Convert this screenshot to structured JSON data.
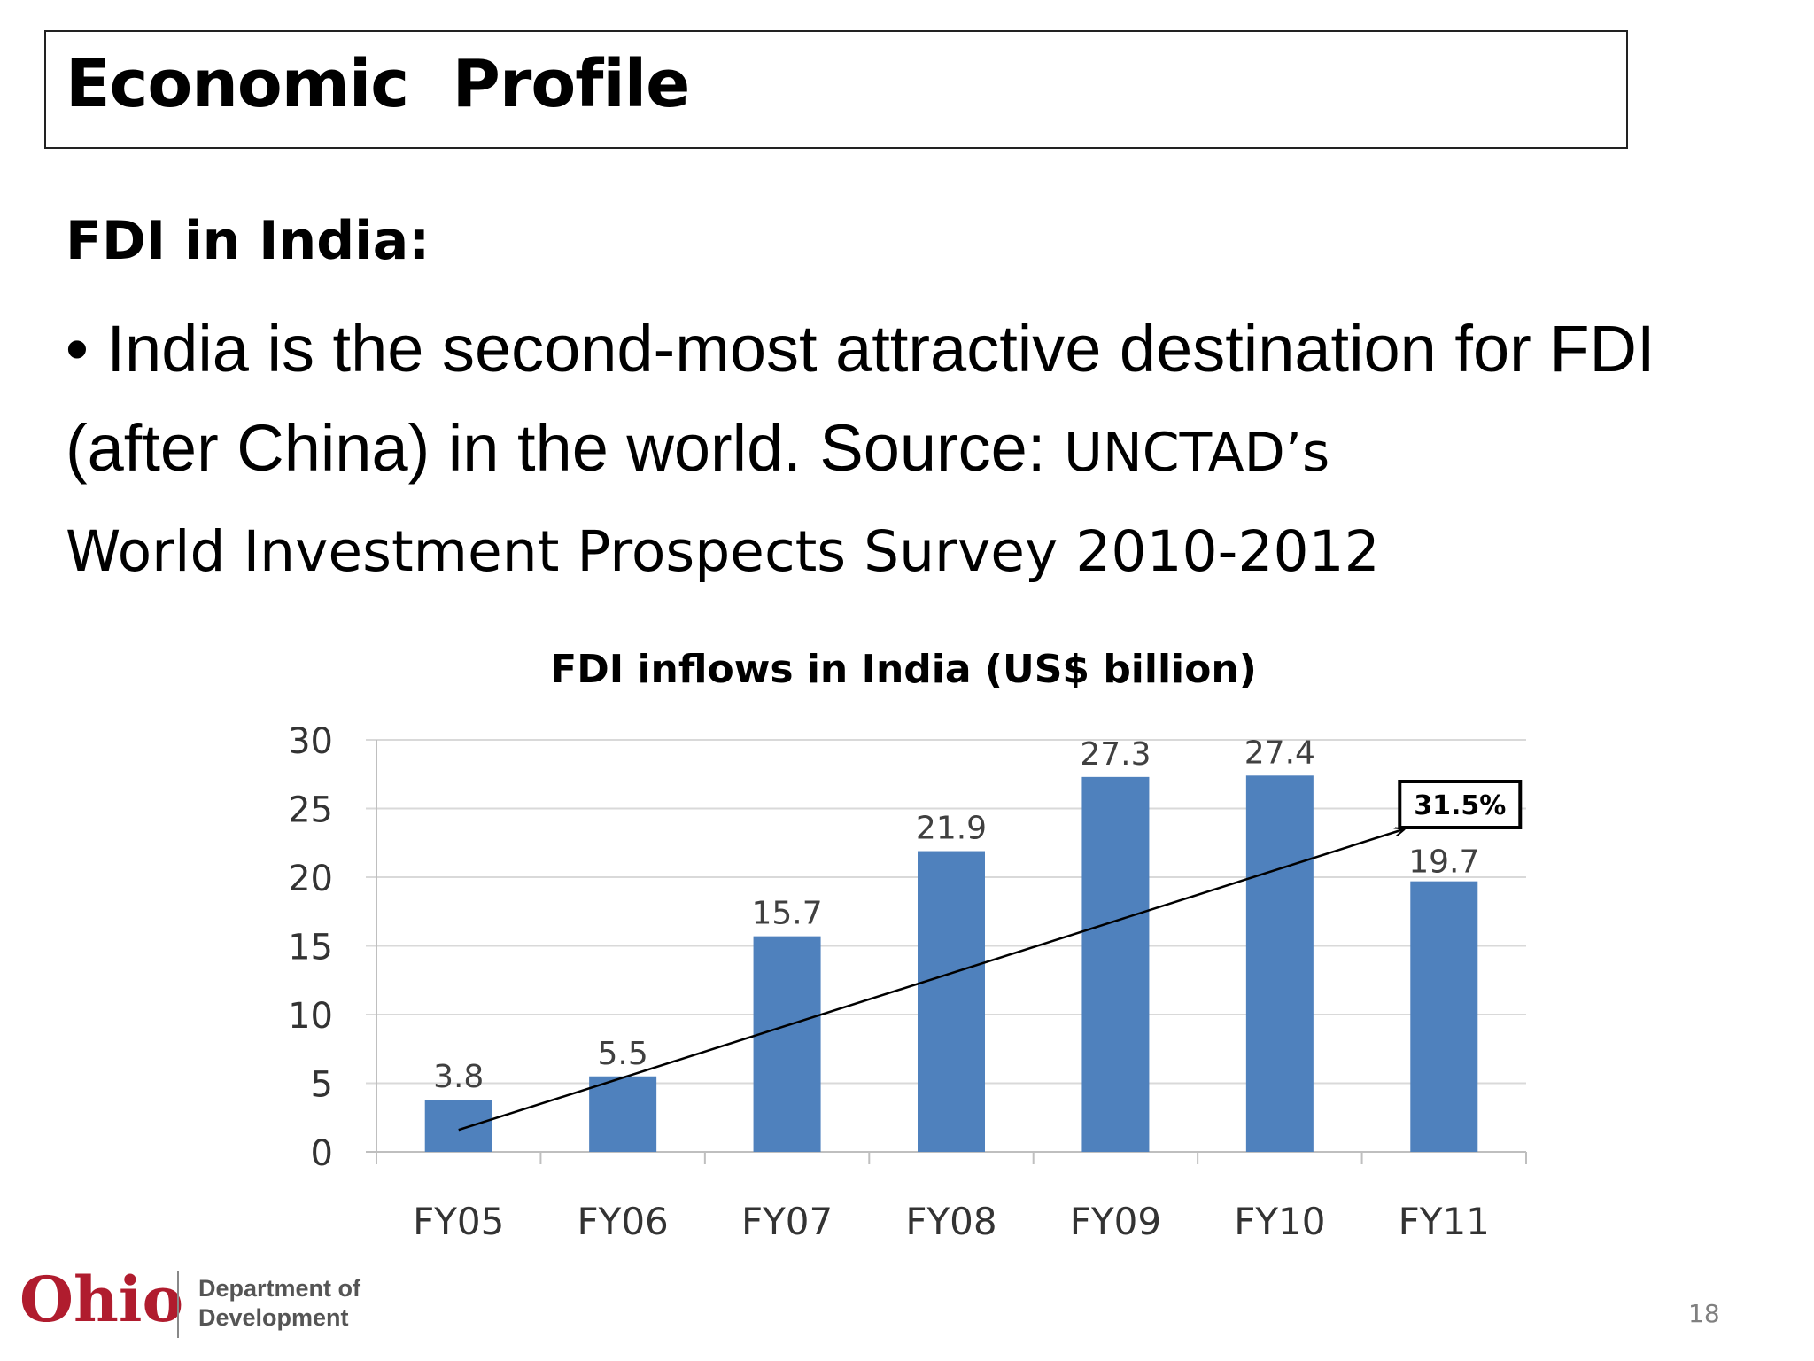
{
  "slide": {
    "title": "Economic  Profile",
    "subheading": "FDI in India:",
    "bullet_marker": "•",
    "bullet_main": "India is the second-most attractive destination for FDI (after China) in the world. Source:",
    "bullet_source_tail": "UNCTAD’s",
    "bullet_line3": "World Investment Prospects Survey 2010-2012",
    "page_number": "18"
  },
  "footer": {
    "logo_word": "Ohio",
    "logo_dept_line1": "Department of",
    "logo_dept_line2": "Development"
  },
  "colors": {
    "bar": "#4f81bd",
    "gridline": "#d9d9d9",
    "logo_red": "#b01c2e"
  },
  "chart_data": {
    "type": "bar",
    "title": "FDI inflows in India (US$ billion)",
    "categories": [
      "FY05",
      "FY06",
      "FY07",
      "FY08",
      "FY09",
      "FY10",
      "FY11"
    ],
    "series": [
      {
        "values": [
          3.8,
          5.5,
          15.7,
          21.9,
          27.3,
          27.4,
          19.7
        ]
      }
    ],
    "data_labels": [
      "3.8",
      "5.5",
      "15.7",
      "21.9",
      "27.3",
      "27.4",
      "19.7"
    ],
    "ylim": [
      0,
      30
    ],
    "yticks": [
      0,
      5,
      10,
      15,
      20,
      25,
      30
    ],
    "grid": true,
    "legend": "none",
    "annotation": {
      "label": "31.5%",
      "arrow_from": {
        "category": "FY05",
        "y": 1.6
      },
      "arrow_to": {
        "category": "FY11",
        "y": 23.5
      }
    }
  }
}
